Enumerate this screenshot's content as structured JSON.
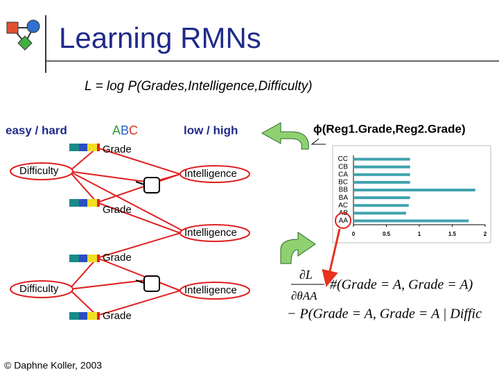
{
  "header": {
    "title": "Learning RMNs"
  },
  "likelihood": "L = log P(Grades,Intelligence,Difficulty)",
  "labels": {
    "easy_hard": "easy / hard",
    "abc": [
      "A",
      "B",
      "C"
    ],
    "low_high": "low / high",
    "phi": "ϕ(Reg1.Grade,Reg2.Grade)"
  },
  "nodes": [
    {
      "label": "Grade"
    },
    {
      "label": "Difficulty"
    },
    {
      "label": "Intelligence"
    },
    {
      "label": "Grade"
    },
    {
      "label": "Intelligence"
    },
    {
      "label": "Grade"
    },
    {
      "label": "Difficulty"
    },
    {
      "label": "Intelligence"
    },
    {
      "label": "Grade"
    }
  ],
  "phi_chart": {
    "type": "bar",
    "categories": [
      "CC",
      "CB",
      "CA",
      "BC",
      "BB",
      "BA",
      "AC",
      "AB",
      "AA"
    ],
    "values": [
      0.86,
      0.86,
      0.86,
      0.86,
      1.85,
      0.86,
      0.84,
      0.8,
      1.75
    ],
    "color": "#3fa3ad",
    "xlim": [
      0,
      2
    ],
    "xticks": [
      0,
      0.5,
      1,
      1.5,
      2
    ]
  },
  "gradient": {
    "numerator": "∂L",
    "denominator": "∂θAA",
    "term1": "#(Grade = A, Grade = A)",
    "term2": "− P(Grade = A, Grade = A | Diffic"
  },
  "footer": "© Daphne Koller, 2003"
}
